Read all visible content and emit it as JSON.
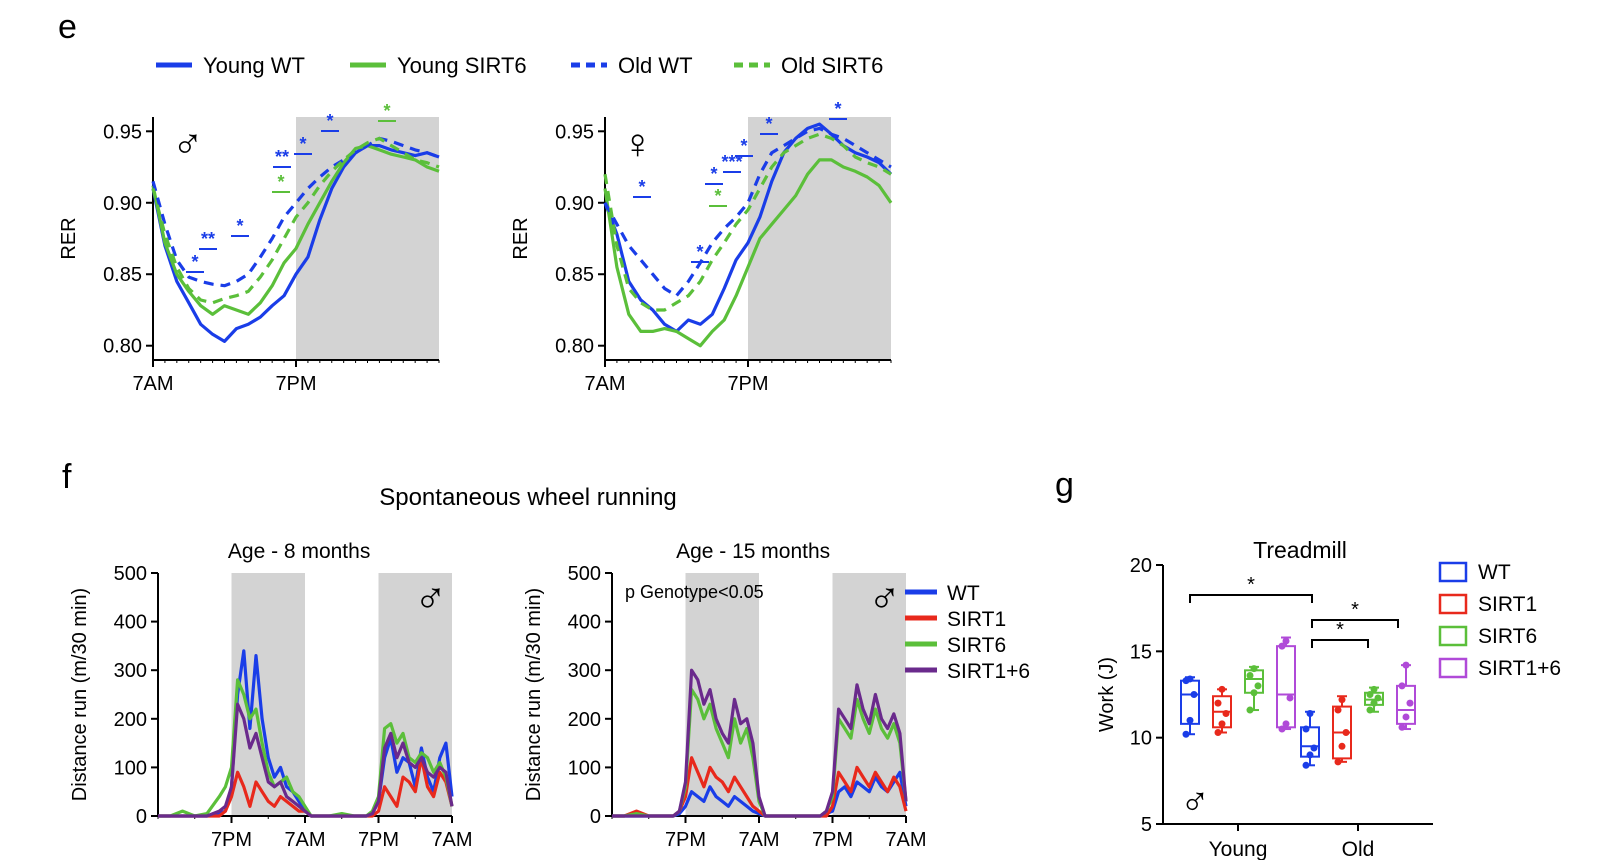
{
  "figure": {
    "panel_labels": [
      "e",
      "f",
      "g"
    ],
    "f_title": "Spontaneous wheel running"
  },
  "legend_e": [
    {
      "label": "Young WT",
      "color": "#1a3de8",
      "dash": false
    },
    {
      "label": "Young SIRT6",
      "color": "#5bbf3a",
      "dash": false
    },
    {
      "label": "Old WT",
      "color": "#1a3de8",
      "dash": true
    },
    {
      "label": "Old SIRT6",
      "color": "#5bbf3a",
      "dash": true
    }
  ],
  "colors": {
    "wt": "#1a3de8",
    "sirt1": "#e8291c",
    "sirt6": "#5bbf3a",
    "sirt16": "#6a2a8c",
    "sirt16_box": "#b04ad8",
    "shade": "#d3d3d3"
  },
  "chart_data": [
    {
      "id": "e-male",
      "type": "line",
      "symbol": "♂",
      "ylabel": "RER",
      "ylim": [
        0.79,
        0.96
      ],
      "yticks": [
        0.8,
        0.85,
        0.9,
        0.95
      ],
      "xticks": [
        "7AM",
        "7PM"
      ],
      "x_range_h": [
        0,
        24
      ],
      "dark_phase_h": [
        12,
        24
      ],
      "x_hours": [
        0,
        1,
        2,
        3,
        4,
        5,
        6,
        7,
        8,
        9,
        10,
        11,
        12,
        13,
        14,
        15,
        16,
        17,
        18,
        19,
        20,
        21,
        22,
        23,
        24
      ],
      "series": [
        {
          "name": "Young WT",
          "values": [
            0.91,
            0.87,
            0.845,
            0.83,
            0.815,
            0.808,
            0.803,
            0.812,
            0.815,
            0.82,
            0.828,
            0.835,
            0.85,
            0.862,
            0.888,
            0.91,
            0.925,
            0.935,
            0.94,
            0.94,
            0.937,
            0.935,
            0.933,
            0.935,
            0.932
          ]
        },
        {
          "name": "Young SIRT6",
          "values": [
            0.912,
            0.872,
            0.85,
            0.838,
            0.828,
            0.822,
            0.828,
            0.825,
            0.822,
            0.83,
            0.842,
            0.858,
            0.868,
            0.885,
            0.9,
            0.915,
            0.928,
            0.938,
            0.94,
            0.937,
            0.934,
            0.932,
            0.93,
            0.925,
            0.922
          ]
        },
        {
          "name": "Old WT",
          "values": [
            0.915,
            0.885,
            0.86,
            0.848,
            0.845,
            0.843,
            0.842,
            0.845,
            0.85,
            0.862,
            0.875,
            0.89,
            0.9,
            0.91,
            0.918,
            0.925,
            0.93,
            0.935,
            0.94,
            0.945,
            0.943,
            0.94,
            0.937,
            0.935,
            0.932
          ]
        },
        {
          "name": "Old SIRT6",
          "values": [
            0.91,
            0.878,
            0.855,
            0.84,
            0.832,
            0.83,
            0.833,
            0.835,
            0.838,
            0.848,
            0.86,
            0.875,
            0.89,
            0.9,
            0.912,
            0.922,
            0.93,
            0.937,
            0.942,
            0.945,
            0.94,
            0.935,
            0.93,
            0.928,
            0.925
          ]
        }
      ],
      "significance": [
        "*",
        "**",
        "*",
        "**",
        "*",
        "*",
        "*",
        "*"
      ]
    },
    {
      "id": "e-female",
      "type": "line",
      "symbol": "♀",
      "ylabel": "RER",
      "ylim": [
        0.79,
        0.96
      ],
      "yticks": [
        0.8,
        0.85,
        0.9,
        0.95
      ],
      "xticks": [
        "7AM",
        "7PM"
      ],
      "x_range_h": [
        0,
        24
      ],
      "dark_phase_h": [
        12,
        24
      ],
      "x_hours": [
        0,
        1,
        2,
        3,
        4,
        5,
        6,
        7,
        8,
        9,
        10,
        11,
        12,
        13,
        14,
        15,
        16,
        17,
        18,
        19,
        20,
        21,
        22,
        23,
        24
      ],
      "series": [
        {
          "name": "Young WT",
          "values": [
            0.9,
            0.878,
            0.845,
            0.832,
            0.825,
            0.815,
            0.81,
            0.818,
            0.815,
            0.822,
            0.84,
            0.86,
            0.872,
            0.89,
            0.915,
            0.935,
            0.945,
            0.952,
            0.955,
            0.948,
            0.94,
            0.935,
            0.932,
            0.928,
            0.92
          ]
        },
        {
          "name": "Young SIRT6",
          "values": [
            0.91,
            0.855,
            0.822,
            0.81,
            0.81,
            0.812,
            0.81,
            0.805,
            0.8,
            0.81,
            0.818,
            0.835,
            0.855,
            0.875,
            0.885,
            0.895,
            0.905,
            0.92,
            0.93,
            0.93,
            0.925,
            0.922,
            0.918,
            0.912,
            0.9
          ]
        },
        {
          "name": "Old WT",
          "values": [
            0.9,
            0.885,
            0.87,
            0.86,
            0.85,
            0.84,
            0.835,
            0.845,
            0.858,
            0.872,
            0.882,
            0.89,
            0.9,
            0.92,
            0.935,
            0.94,
            0.945,
            0.95,
            0.952,
            0.948,
            0.945,
            0.94,
            0.935,
            0.93,
            0.925
          ]
        },
        {
          "name": "Old SIRT6",
          "values": [
            0.92,
            0.87,
            0.84,
            0.83,
            0.825,
            0.825,
            0.83,
            0.835,
            0.845,
            0.86,
            0.872,
            0.885,
            0.895,
            0.91,
            0.925,
            0.935,
            0.94,
            0.945,
            0.948,
            0.945,
            0.94,
            0.932,
            0.928,
            0.925,
            0.92
          ]
        }
      ],
      "significance": [
        "*",
        "*",
        "*",
        "*",
        "***",
        "*",
        "*",
        "*"
      ]
    },
    {
      "id": "f-8m",
      "type": "line",
      "title": "Age - 8 months",
      "symbol": "♂",
      "ylabel": "Distance run (m/30 min)",
      "ylim": [
        0,
        500
      ],
      "yticks": [
        0,
        100,
        200,
        300,
        400,
        500
      ],
      "xticks": [
        "7PM",
        "7AM",
        "7PM",
        "7AM"
      ],
      "x_range_h": [
        0,
        48
      ],
      "xtick_hours": [
        12,
        24,
        36,
        48
      ],
      "dark_phases_h": [
        [
          12,
          24
        ],
        [
          36,
          48
        ]
      ],
      "x_hours": [
        0,
        2,
        4,
        6,
        8,
        10,
        11,
        12,
        13,
        14,
        15,
        16,
        17,
        18,
        19,
        20,
        21,
        22,
        23,
        24,
        25,
        26,
        28,
        30,
        32,
        34,
        35,
        36,
        37,
        38,
        39,
        40,
        41,
        42,
        43,
        44,
        45,
        46,
        47,
        48,
        50
      ],
      "series": [
        {
          "name": "WT",
          "values": [
            0,
            0,
            0,
            0,
            0,
            5,
            10,
            60,
            250,
            340,
            180,
            330,
            200,
            120,
            80,
            100,
            60,
            50,
            30,
            10,
            0,
            0,
            0,
            0,
            0,
            0,
            5,
            30,
            120,
            160,
            90,
            120,
            110,
            60,
            140,
            80,
            50,
            120,
            150,
            40,
            0
          ]
        },
        {
          "name": "SIRT1",
          "values": [
            0,
            0,
            0,
            0,
            0,
            0,
            10,
            40,
            90,
            60,
            20,
            70,
            50,
            30,
            20,
            40,
            30,
            20,
            10,
            10,
            0,
            0,
            0,
            0,
            0,
            0,
            0,
            10,
            60,
            40,
            20,
            80,
            70,
            50,
            120,
            60,
            40,
            90,
            70,
            20,
            0
          ]
        },
        {
          "name": "SIRT6",
          "values": [
            0,
            0,
            10,
            0,
            5,
            40,
            60,
            100,
            280,
            250,
            200,
            220,
            150,
            90,
            60,
            70,
            80,
            50,
            40,
            20,
            0,
            0,
            0,
            5,
            0,
            0,
            10,
            40,
            180,
            190,
            150,
            170,
            120,
            110,
            130,
            120,
            90,
            110,
            80,
            20,
            0
          ]
        },
        {
          "name": "SIRT1+6",
          "values": [
            0,
            0,
            0,
            0,
            0,
            10,
            20,
            60,
            230,
            200,
            140,
            170,
            120,
            70,
            60,
            70,
            40,
            30,
            20,
            10,
            0,
            0,
            0,
            0,
            0,
            0,
            5,
            30,
            140,
            170,
            120,
            150,
            110,
            100,
            120,
            90,
            80,
            100,
            90,
            20,
            0
          ]
        }
      ]
    },
    {
      "id": "f-15m",
      "type": "line",
      "title": "Age - 15 months",
      "symbol": "♂",
      "annotation": "p Genotype<0.05",
      "ylabel": "Distance run (m/30 min)",
      "ylim": [
        0,
        500
      ],
      "yticks": [
        0,
        100,
        200,
        300,
        400,
        500
      ],
      "xticks": [
        "7PM",
        "7AM",
        "7PM",
        "7AM"
      ],
      "x_range_h": [
        0,
        48
      ],
      "xtick_hours": [
        12,
        24,
        36,
        48
      ],
      "dark_phases_h": [
        [
          12,
          24
        ],
        [
          36,
          48
        ]
      ],
      "x_hours": [
        0,
        2,
        4,
        6,
        8,
        10,
        11,
        12,
        13,
        14,
        15,
        16,
        17,
        18,
        19,
        20,
        21,
        22,
        23,
        24,
        25,
        26,
        28,
        30,
        32,
        34,
        35,
        36,
        37,
        38,
        39,
        40,
        41,
        42,
        43,
        44,
        45,
        46,
        47,
        48,
        50
      ],
      "series": [
        {
          "name": "WT",
          "values": [
            0,
            0,
            0,
            0,
            0,
            0,
            5,
            20,
            50,
            40,
            30,
            60,
            40,
            30,
            20,
            40,
            30,
            20,
            10,
            5,
            0,
            0,
            0,
            0,
            0,
            0,
            5,
            10,
            50,
            60,
            40,
            70,
            60,
            50,
            80,
            60,
            50,
            70,
            90,
            20,
            0
          ]
        },
        {
          "name": "SIRT1",
          "values": [
            0,
            0,
            10,
            0,
            0,
            0,
            10,
            40,
            120,
            90,
            60,
            100,
            80,
            70,
            50,
            80,
            60,
            40,
            20,
            10,
            0,
            0,
            0,
            0,
            0,
            0,
            0,
            20,
            90,
            70,
            50,
            100,
            80,
            60,
            90,
            70,
            50,
            80,
            60,
            10,
            0
          ]
        },
        {
          "name": "SIRT6",
          "values": [
            0,
            0,
            5,
            0,
            0,
            0,
            10,
            60,
            260,
            240,
            200,
            230,
            180,
            150,
            120,
            200,
            150,
            180,
            120,
            30,
            0,
            0,
            0,
            0,
            0,
            0,
            10,
            40,
            200,
            180,
            160,
            240,
            200,
            170,
            220,
            180,
            160,
            190,
            150,
            30,
            0
          ]
        },
        {
          "name": "SIRT1+6",
          "values": [
            0,
            0,
            0,
            0,
            0,
            0,
            10,
            70,
            300,
            280,
            230,
            260,
            200,
            170,
            150,
            240,
            190,
            200,
            150,
            40,
            0,
            0,
            0,
            0,
            0,
            0,
            10,
            50,
            220,
            200,
            180,
            270,
            220,
            190,
            250,
            200,
            180,
            210,
            170,
            30,
            0
          ]
        }
      ],
      "legend": [
        "WT",
        "SIRT1",
        "SIRT6",
        "SIRT1+6"
      ]
    },
    {
      "id": "g",
      "type": "box",
      "title": "Treadmill",
      "symbol": "♂",
      "ylabel": "Work (J)",
      "ylim": [
        5,
        20
      ],
      "yticks": [
        5,
        10,
        15,
        20
      ],
      "categories": [
        "Young",
        "Old"
      ],
      "legend": [
        "WT",
        "SIRT1",
        "SIRT6",
        "SIRT1+6"
      ],
      "significance": [
        "*",
        "*",
        "*"
      ],
      "boxes": [
        {
          "group": "Young",
          "genotype": "WT",
          "min": 10.2,
          "q1": 10.8,
          "median": 12.5,
          "q3": 13.3,
          "max": 13.5,
          "points": [
            10.2,
            11.0,
            12.5,
            13.3,
            13.4
          ]
        },
        {
          "group": "Young",
          "genotype": "SIRT1",
          "min": 10.3,
          "q1": 10.6,
          "median": 11.5,
          "q3": 12.4,
          "max": 12.8,
          "points": [
            10.3,
            10.8,
            11.4,
            12.0,
            12.8
          ]
        },
        {
          "group": "Young",
          "genotype": "SIRT6",
          "min": 11.6,
          "q1": 12.6,
          "median": 13.4,
          "q3": 13.9,
          "max": 14.1,
          "points": [
            11.6,
            12.6,
            13.0,
            13.6,
            14.0
          ]
        },
        {
          "group": "Young",
          "genotype": "SIRT1+6",
          "min": 10.5,
          "q1": 10.6,
          "median": 12.5,
          "q3": 15.3,
          "max": 15.8,
          "points": [
            10.5,
            10.8,
            12.3,
            15.3,
            15.6
          ]
        },
        {
          "group": "Old",
          "genotype": "WT",
          "min": 8.4,
          "q1": 8.9,
          "median": 9.5,
          "q3": 10.6,
          "max": 11.5,
          "points": [
            8.4,
            9.0,
            9.4,
            10.5,
            11.4
          ]
        },
        {
          "group": "Old",
          "genotype": "SIRT1",
          "min": 8.6,
          "q1": 8.8,
          "median": 10.3,
          "q3": 11.8,
          "max": 12.4,
          "points": [
            8.6,
            9.5,
            10.3,
            11.6,
            12.2
          ]
        },
        {
          "group": "Old",
          "genotype": "SIRT6",
          "min": 11.5,
          "q1": 11.9,
          "median": 12.2,
          "q3": 12.6,
          "max": 12.9,
          "points": [
            11.6,
            12.0,
            12.3,
            12.5,
            12.8
          ]
        },
        {
          "group": "Old",
          "genotype": "SIRT1+6",
          "min": 10.5,
          "q1": 10.8,
          "median": 11.6,
          "q3": 13.0,
          "max": 14.2,
          "points": [
            10.6,
            11.2,
            12.0,
            13.0,
            14.2
          ]
        }
      ]
    }
  ]
}
